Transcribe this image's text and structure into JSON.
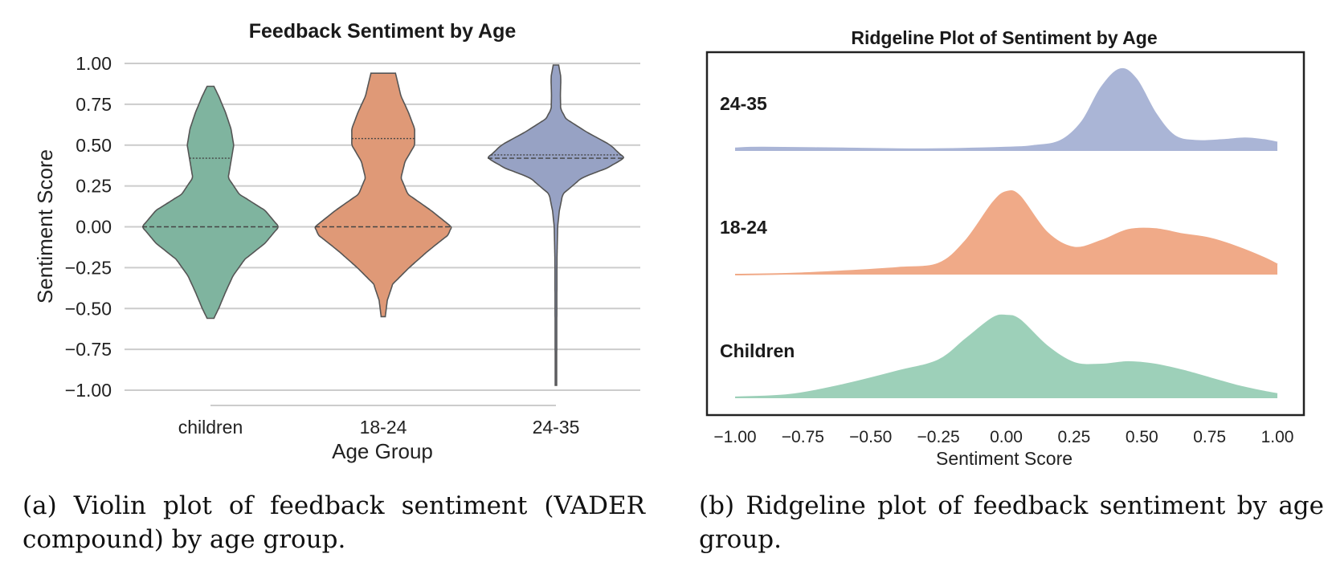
{
  "chart_data": [
    {
      "type": "violin",
      "title": "Feedback Sentiment by Age",
      "xlabel": "Age Group",
      "ylabel": "Sentiment Score",
      "categories": [
        "children",
        "18-24",
        "24-35"
      ],
      "ylim": [
        -1.0,
        1.0
      ],
      "yticks": [
        "1.00",
        "0.75",
        "0.50",
        "0.25",
        "0.00",
        "−0.25",
        "−0.50",
        "−0.75",
        "−1.00"
      ],
      "grid": "horizontal",
      "colors": [
        "#7fb49f",
        "#df9977",
        "#97a2c4"
      ],
      "series": [
        {
          "category": "children",
          "min": -0.56,
          "max": 0.86,
          "median": 0.0,
          "q3": 0.42,
          "profile": [
            [
              -0.56,
              0.05
            ],
            [
              -0.5,
              0.12
            ],
            [
              -0.4,
              0.22
            ],
            [
              -0.3,
              0.33
            ],
            [
              -0.2,
              0.5
            ],
            [
              -0.1,
              0.8
            ],
            [
              0.0,
              1.0
            ],
            [
              0.1,
              0.8
            ],
            [
              0.2,
              0.42
            ],
            [
              0.3,
              0.26
            ],
            [
              0.4,
              0.3
            ],
            [
              0.5,
              0.34
            ],
            [
              0.6,
              0.3
            ],
            [
              0.7,
              0.22
            ],
            [
              0.8,
              0.12
            ],
            [
              0.86,
              0.05
            ]
          ]
        },
        {
          "category": "18-24",
          "min": -0.55,
          "max": 0.94,
          "median": 0.0,
          "q3": 0.54,
          "profile": [
            [
              -0.55,
              0.03
            ],
            [
              -0.45,
              0.06
            ],
            [
              -0.35,
              0.14
            ],
            [
              -0.25,
              0.38
            ],
            [
              -0.15,
              0.65
            ],
            [
              -0.05,
              0.95
            ],
            [
              0.0,
              1.0
            ],
            [
              0.1,
              0.7
            ],
            [
              0.2,
              0.36
            ],
            [
              0.3,
              0.26
            ],
            [
              0.4,
              0.32
            ],
            [
              0.5,
              0.46
            ],
            [
              0.6,
              0.46
            ],
            [
              0.7,
              0.37
            ],
            [
              0.8,
              0.26
            ],
            [
              0.94,
              0.18
            ]
          ]
        },
        {
          "category": "24-35",
          "min": -0.97,
          "max": 0.99,
          "median": 0.42,
          "q3": 0.44,
          "profile": [
            [
              -0.97,
              0.01
            ],
            [
              -0.6,
              0.012
            ],
            [
              -0.2,
              0.015
            ],
            [
              0.0,
              0.025
            ],
            [
              0.1,
              0.05
            ],
            [
              0.2,
              0.1
            ],
            [
              0.3,
              0.38
            ],
            [
              0.36,
              0.75
            ],
            [
              0.42,
              1.0
            ],
            [
              0.5,
              0.8
            ],
            [
              0.58,
              0.45
            ],
            [
              0.66,
              0.15
            ],
            [
              0.72,
              0.07
            ],
            [
              0.8,
              0.065
            ],
            [
              0.88,
              0.07
            ],
            [
              0.92,
              0.07
            ],
            [
              0.99,
              0.04
            ]
          ]
        }
      ]
    },
    {
      "type": "ridgeline",
      "title": "Ridgeline Plot of Sentiment by Age",
      "xlabel": "Sentiment Score",
      "xlim": [
        -1.0,
        1.0
      ],
      "xticks": [
        "−1.00",
        "−0.75",
        "−0.50",
        "−0.25",
        "0.00",
        "0.25",
        "0.50",
        "0.75",
        "1.00"
      ],
      "series": [
        {
          "name": "24-35",
          "color": "#aab5d6",
          "density": [
            [
              -1,
              0.03
            ],
            [
              -0.9,
              0.04
            ],
            [
              -0.6,
              0.03
            ],
            [
              -0.3,
              0.02
            ],
            [
              0,
              0.04
            ],
            [
              0.1,
              0.06
            ],
            [
              0.2,
              0.12
            ],
            [
              0.28,
              0.35
            ],
            [
              0.35,
              0.75
            ],
            [
              0.42,
              0.97
            ],
            [
              0.48,
              0.85
            ],
            [
              0.55,
              0.45
            ],
            [
              0.62,
              0.18
            ],
            [
              0.7,
              0.12
            ],
            [
              0.8,
              0.13
            ],
            [
              0.88,
              0.15
            ],
            [
              0.95,
              0.13
            ],
            [
              1.0,
              0.1
            ]
          ]
        },
        {
          "name": "18-24",
          "color": "#f0aa88",
          "density": [
            [
              -1,
              0.0
            ],
            [
              -0.8,
              0.01
            ],
            [
              -0.6,
              0.04
            ],
            [
              -0.4,
              0.08
            ],
            [
              -0.25,
              0.13
            ],
            [
              -0.15,
              0.4
            ],
            [
              -0.05,
              0.85
            ],
            [
              0,
              0.98
            ],
            [
              0.05,
              0.93
            ],
            [
              0.15,
              0.5
            ],
            [
              0.25,
              0.32
            ],
            [
              0.35,
              0.4
            ],
            [
              0.45,
              0.53
            ],
            [
              0.55,
              0.54
            ],
            [
              0.65,
              0.48
            ],
            [
              0.75,
              0.43
            ],
            [
              0.85,
              0.33
            ],
            [
              0.95,
              0.2
            ],
            [
              1.0,
              0.12
            ]
          ]
        },
        {
          "name": "Children",
          "color": "#9dd0b9",
          "density": [
            [
              -1,
              0.01
            ],
            [
              -0.8,
              0.04
            ],
            [
              -0.6,
              0.16
            ],
            [
              -0.4,
              0.32
            ],
            [
              -0.25,
              0.45
            ],
            [
              -0.15,
              0.7
            ],
            [
              -0.05,
              0.95
            ],
            [
              0,
              0.98
            ],
            [
              0.05,
              0.93
            ],
            [
              0.15,
              0.62
            ],
            [
              0.25,
              0.42
            ],
            [
              0.35,
              0.4
            ],
            [
              0.45,
              0.43
            ],
            [
              0.55,
              0.4
            ],
            [
              0.65,
              0.33
            ],
            [
              0.75,
              0.24
            ],
            [
              0.85,
              0.15
            ],
            [
              0.95,
              0.08
            ],
            [
              1.0,
              0.05
            ]
          ]
        }
      ]
    }
  ],
  "captions": {
    "a": "(a) Violin plot of feedback sentiment (VADER compound) by age group.",
    "b": "(b) Ridgeline plot of feedback sentiment by age group."
  }
}
